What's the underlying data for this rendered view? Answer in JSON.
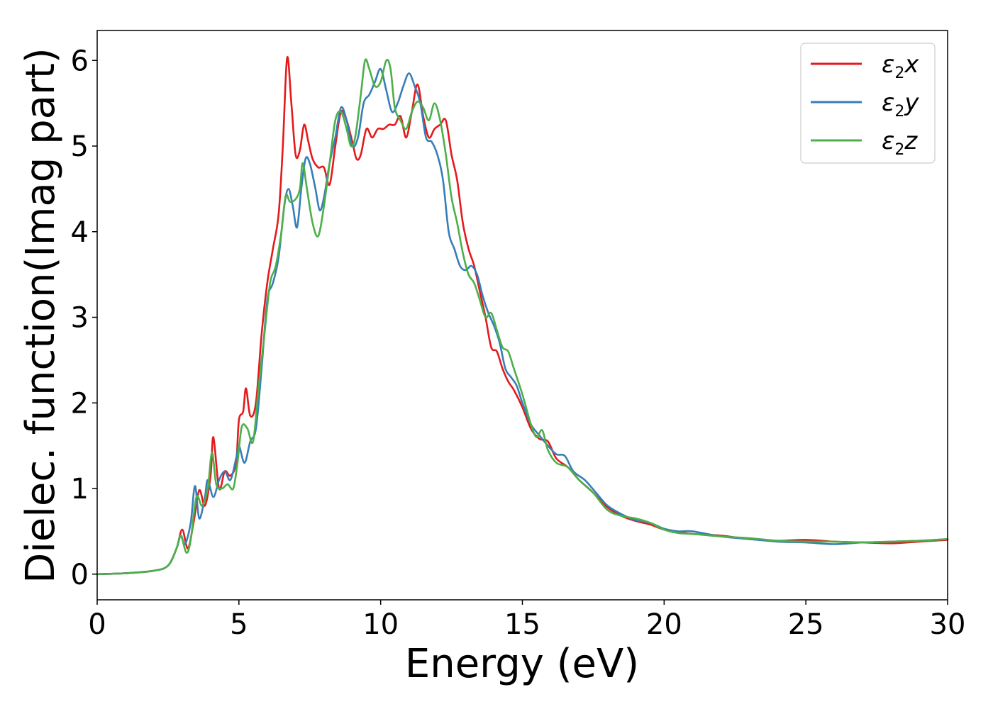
{
  "chart_data": {
    "type": "line",
    "title": "",
    "xlabel": "Energy (eV)",
    "ylabel": "Dielec. function(Imag part)",
    "xlim": [
      0,
      30
    ],
    "ylim": [
      -0.3,
      6.35
    ],
    "xticks": [
      0,
      5,
      10,
      15,
      20,
      25,
      30
    ],
    "yticks": [
      0,
      1,
      2,
      3,
      4,
      5,
      6
    ],
    "grid": false,
    "legend_position": "top-right",
    "series": [
      {
        "name": "ε2x",
        "legend_base": "ε",
        "legend_sub": "2",
        "legend_var": "x",
        "color": "#e41a1c",
        "points": [
          [
            0,
            0
          ],
          [
            1,
            0.01
          ],
          [
            2,
            0.04
          ],
          [
            2.5,
            0.1
          ],
          [
            2.8,
            0.3
          ],
          [
            3.0,
            0.52
          ],
          [
            3.2,
            0.3
          ],
          [
            3.4,
            0.6
          ],
          [
            3.6,
            0.98
          ],
          [
            3.8,
            0.8
          ],
          [
            4.0,
            1.15
          ],
          [
            4.1,
            1.6
          ],
          [
            4.3,
            1.0
          ],
          [
            4.5,
            1.2
          ],
          [
            4.7,
            1.15
          ],
          [
            4.9,
            1.3
          ],
          [
            5.0,
            1.8
          ],
          [
            5.15,
            1.9
          ],
          [
            5.25,
            2.17
          ],
          [
            5.4,
            1.85
          ],
          [
            5.6,
            2.0
          ],
          [
            5.8,
            2.8
          ],
          [
            6.0,
            3.4
          ],
          [
            6.2,
            3.8
          ],
          [
            6.4,
            4.2
          ],
          [
            6.55,
            5.0
          ],
          [
            6.7,
            6.03
          ],
          [
            6.85,
            5.5
          ],
          [
            7.0,
            4.9
          ],
          [
            7.15,
            4.95
          ],
          [
            7.3,
            5.25
          ],
          [
            7.45,
            5.05
          ],
          [
            7.6,
            4.85
          ],
          [
            7.8,
            4.75
          ],
          [
            8.0,
            4.75
          ],
          [
            8.2,
            4.55
          ],
          [
            8.4,
            5.0
          ],
          [
            8.6,
            5.4
          ],
          [
            8.8,
            5.3
          ],
          [
            9.0,
            5.05
          ],
          [
            9.15,
            4.85
          ],
          [
            9.3,
            4.9
          ],
          [
            9.5,
            5.2
          ],
          [
            9.7,
            5.1
          ],
          [
            9.9,
            5.2
          ],
          [
            10.1,
            5.2
          ],
          [
            10.3,
            5.25
          ],
          [
            10.5,
            5.25
          ],
          [
            10.7,
            5.35
          ],
          [
            10.9,
            5.1
          ],
          [
            11.1,
            5.4
          ],
          [
            11.3,
            5.72
          ],
          [
            11.5,
            5.35
          ],
          [
            11.7,
            5.1
          ],
          [
            11.9,
            5.2
          ],
          [
            12.1,
            5.25
          ],
          [
            12.3,
            5.3
          ],
          [
            12.5,
            4.9
          ],
          [
            12.7,
            4.6
          ],
          [
            12.9,
            4.1
          ],
          [
            13.1,
            3.8
          ],
          [
            13.3,
            3.6
          ],
          [
            13.5,
            3.3
          ],
          [
            13.7,
            3.0
          ],
          [
            13.9,
            2.65
          ],
          [
            14.1,
            2.6
          ],
          [
            14.3,
            2.4
          ],
          [
            14.5,
            2.25
          ],
          [
            14.7,
            2.15
          ],
          [
            15.0,
            1.95
          ],
          [
            15.3,
            1.7
          ],
          [
            15.6,
            1.58
          ],
          [
            15.9,
            1.55
          ],
          [
            16.2,
            1.35
          ],
          [
            16.6,
            1.25
          ],
          [
            17.0,
            1.1
          ],
          [
            17.5,
            0.95
          ],
          [
            18.0,
            0.78
          ],
          [
            18.5,
            0.68
          ],
          [
            19.0,
            0.62
          ],
          [
            19.5,
            0.58
          ],
          [
            20.0,
            0.52
          ],
          [
            20.5,
            0.49
          ],
          [
            21.0,
            0.47
          ],
          [
            22.0,
            0.45
          ],
          [
            23.0,
            0.41
          ],
          [
            24.0,
            0.39
          ],
          [
            25.0,
            0.4
          ],
          [
            26.0,
            0.38
          ],
          [
            27.0,
            0.37
          ],
          [
            28.0,
            0.36
          ],
          [
            29.0,
            0.38
          ],
          [
            30.0,
            0.4
          ]
        ]
      },
      {
        "name": "ε2y",
        "legend_base": "ε",
        "legend_sub": "2",
        "legend_var": "y",
        "color": "#377eb8",
        "points": [
          [
            0,
            0
          ],
          [
            1,
            0.01
          ],
          [
            2,
            0.04
          ],
          [
            2.5,
            0.1
          ],
          [
            2.8,
            0.3
          ],
          [
            2.95,
            0.45
          ],
          [
            3.1,
            0.35
          ],
          [
            3.3,
            0.6
          ],
          [
            3.45,
            1.03
          ],
          [
            3.6,
            0.65
          ],
          [
            3.8,
            0.9
          ],
          [
            3.9,
            1.1
          ],
          [
            4.1,
            0.9
          ],
          [
            4.3,
            1.1
          ],
          [
            4.5,
            1.2
          ],
          [
            4.7,
            1.1
          ],
          [
            4.9,
            1.35
          ],
          [
            5.0,
            1.5
          ],
          [
            5.2,
            1.3
          ],
          [
            5.4,
            1.55
          ],
          [
            5.6,
            1.7
          ],
          [
            5.8,
            2.4
          ],
          [
            6.0,
            3.2
          ],
          [
            6.2,
            3.4
          ],
          [
            6.4,
            3.7
          ],
          [
            6.6,
            4.3
          ],
          [
            6.75,
            4.5
          ],
          [
            6.9,
            4.3
          ],
          [
            7.05,
            4.05
          ],
          [
            7.2,
            4.5
          ],
          [
            7.35,
            4.85
          ],
          [
            7.5,
            4.8
          ],
          [
            7.7,
            4.5
          ],
          [
            7.85,
            4.25
          ],
          [
            8.0,
            4.4
          ],
          [
            8.2,
            4.8
          ],
          [
            8.4,
            5.1
          ],
          [
            8.6,
            5.45
          ],
          [
            8.8,
            5.3
          ],
          [
            9.0,
            5.0
          ],
          [
            9.2,
            5.1
          ],
          [
            9.4,
            5.5
          ],
          [
            9.6,
            5.6
          ],
          [
            9.8,
            5.75
          ],
          [
            10.0,
            5.9
          ],
          [
            10.2,
            5.65
          ],
          [
            10.4,
            5.4
          ],
          [
            10.6,
            5.5
          ],
          [
            10.8,
            5.7
          ],
          [
            11.0,
            5.85
          ],
          [
            11.2,
            5.7
          ],
          [
            11.4,
            5.5
          ],
          [
            11.6,
            5.1
          ],
          [
            11.8,
            5.05
          ],
          [
            12.0,
            4.9
          ],
          [
            12.2,
            4.6
          ],
          [
            12.4,
            4.0
          ],
          [
            12.6,
            3.8
          ],
          [
            12.8,
            3.6
          ],
          [
            13.0,
            3.55
          ],
          [
            13.2,
            3.6
          ],
          [
            13.4,
            3.5
          ],
          [
            13.6,
            3.25
          ],
          [
            13.8,
            3.05
          ],
          [
            14.0,
            2.9
          ],
          [
            14.2,
            2.7
          ],
          [
            14.4,
            2.4
          ],
          [
            14.6,
            2.3
          ],
          [
            14.8,
            2.2
          ],
          [
            15.0,
            2.0
          ],
          [
            15.3,
            1.75
          ],
          [
            15.6,
            1.62
          ],
          [
            15.9,
            1.5
          ],
          [
            16.2,
            1.4
          ],
          [
            16.5,
            1.38
          ],
          [
            16.8,
            1.2
          ],
          [
            17.2,
            1.1
          ],
          [
            17.6,
            0.95
          ],
          [
            18.0,
            0.8
          ],
          [
            18.5,
            0.7
          ],
          [
            19.0,
            0.63
          ],
          [
            19.5,
            0.6
          ],
          [
            20.0,
            0.53
          ],
          [
            20.5,
            0.5
          ],
          [
            21.0,
            0.5
          ],
          [
            22.0,
            0.44
          ],
          [
            23.0,
            0.41
          ],
          [
            24.0,
            0.38
          ],
          [
            25.0,
            0.37
          ],
          [
            26.0,
            0.35
          ],
          [
            27.0,
            0.37
          ],
          [
            28.0,
            0.38
          ],
          [
            29.0,
            0.39
          ],
          [
            30.0,
            0.41
          ]
        ]
      },
      {
        "name": "ε2z",
        "legend_base": "ε",
        "legend_sub": "2",
        "legend_var": "z",
        "color": "#4daf4a",
        "points": [
          [
            0,
            0
          ],
          [
            1,
            0.01
          ],
          [
            2,
            0.04
          ],
          [
            2.5,
            0.1
          ],
          [
            2.8,
            0.3
          ],
          [
            2.95,
            0.45
          ],
          [
            3.15,
            0.25
          ],
          [
            3.3,
            0.4
          ],
          [
            3.5,
            0.9
          ],
          [
            3.7,
            0.8
          ],
          [
            3.9,
            1.0
          ],
          [
            4.05,
            1.42
          ],
          [
            4.2,
            1.05
          ],
          [
            4.4,
            1.0
          ],
          [
            4.6,
            1.05
          ],
          [
            4.8,
            1.0
          ],
          [
            4.95,
            1.3
          ],
          [
            5.1,
            1.72
          ],
          [
            5.3,
            1.7
          ],
          [
            5.5,
            1.55
          ],
          [
            5.7,
            2.2
          ],
          [
            5.9,
            2.8
          ],
          [
            6.1,
            3.4
          ],
          [
            6.3,
            3.6
          ],
          [
            6.5,
            4.0
          ],
          [
            6.65,
            4.42
          ],
          [
            6.8,
            4.35
          ],
          [
            7.0,
            4.38
          ],
          [
            7.15,
            4.5
          ],
          [
            7.25,
            4.8
          ],
          [
            7.4,
            4.5
          ],
          [
            7.6,
            4.1
          ],
          [
            7.8,
            3.95
          ],
          [
            8.0,
            4.3
          ],
          [
            8.2,
            4.8
          ],
          [
            8.4,
            5.3
          ],
          [
            8.6,
            5.4
          ],
          [
            8.8,
            5.2
          ],
          [
            8.95,
            5.0
          ],
          [
            9.1,
            5.1
          ],
          [
            9.3,
            5.6
          ],
          [
            9.45,
            6.0
          ],
          [
            9.6,
            5.9
          ],
          [
            9.8,
            5.7
          ],
          [
            10.0,
            5.75
          ],
          [
            10.2,
            6.0
          ],
          [
            10.35,
            5.9
          ],
          [
            10.5,
            5.45
          ],
          [
            10.7,
            5.3
          ],
          [
            10.9,
            5.2
          ],
          [
            11.1,
            5.4
          ],
          [
            11.3,
            5.52
          ],
          [
            11.5,
            5.45
          ],
          [
            11.7,
            5.3
          ],
          [
            11.9,
            5.5
          ],
          [
            12.1,
            5.3
          ],
          [
            12.3,
            4.9
          ],
          [
            12.5,
            4.4
          ],
          [
            12.7,
            4.1
          ],
          [
            12.9,
            3.75
          ],
          [
            13.1,
            3.5
          ],
          [
            13.3,
            3.4
          ],
          [
            13.5,
            3.2
          ],
          [
            13.7,
            3.0
          ],
          [
            13.9,
            3.05
          ],
          [
            14.1,
            2.85
          ],
          [
            14.3,
            2.65
          ],
          [
            14.5,
            2.6
          ],
          [
            14.7,
            2.4
          ],
          [
            15.0,
            2.1
          ],
          [
            15.3,
            1.75
          ],
          [
            15.5,
            1.6
          ],
          [
            15.7,
            1.68
          ],
          [
            15.9,
            1.45
          ],
          [
            16.2,
            1.3
          ],
          [
            16.6,
            1.25
          ],
          [
            17.0,
            1.1
          ],
          [
            17.5,
            0.95
          ],
          [
            18.0,
            0.75
          ],
          [
            18.5,
            0.68
          ],
          [
            19.0,
            0.65
          ],
          [
            19.5,
            0.6
          ],
          [
            20.0,
            0.52
          ],
          [
            20.5,
            0.48
          ],
          [
            21.0,
            0.47
          ],
          [
            22.0,
            0.44
          ],
          [
            23.0,
            0.42
          ],
          [
            24.0,
            0.39
          ],
          [
            25.0,
            0.38
          ],
          [
            26.0,
            0.38
          ],
          [
            27.0,
            0.37
          ],
          [
            28.0,
            0.38
          ],
          [
            29.0,
            0.39
          ],
          [
            30.0,
            0.41
          ]
        ]
      }
    ]
  }
}
